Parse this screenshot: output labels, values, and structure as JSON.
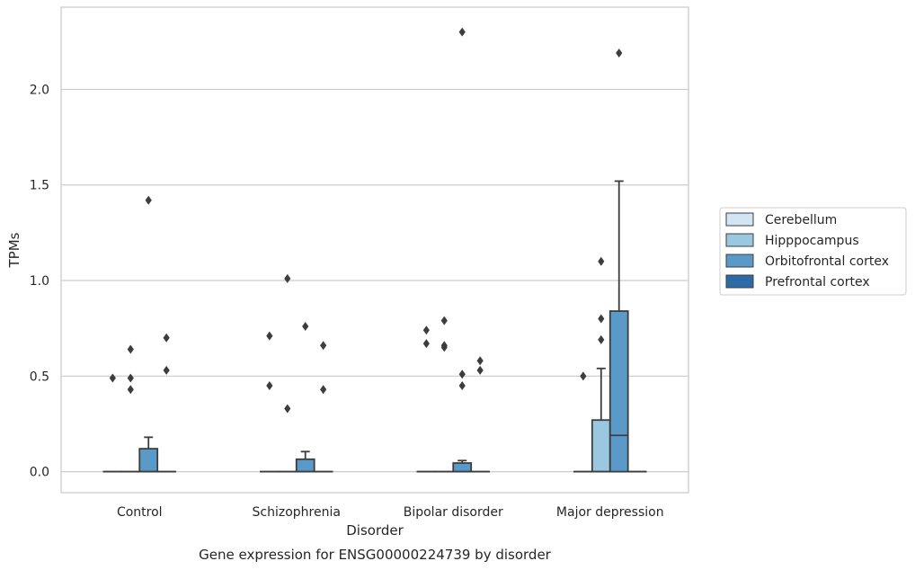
{
  "caption": "Gene expression for ENSG00000224739 by disorder",
  "chart_data": {
    "type": "box",
    "title": "",
    "xlabel": "Disorder",
    "ylabel": "TPMs",
    "ylim": [
      -0.11,
      2.43
    ],
    "yticks": [
      0.0,
      0.5,
      1.0,
      1.5,
      2.0
    ],
    "ytick_labels": [
      "0.0",
      "0.5",
      "1.0",
      "1.5",
      "2.0"
    ],
    "grid": "horizontal",
    "legend_position": "right",
    "categories": [
      "Control",
      "Schizophrenia",
      "Bipolar disorder",
      "Major depression"
    ],
    "series": [
      {
        "name": "Cerebellum",
        "color": "#d3e4f3",
        "boxes": [
          {
            "q1": 0,
            "median": 0,
            "q3": 0,
            "whisker_low": 0,
            "whisker_high": 0,
            "outliers": [
              0.49
            ]
          },
          {
            "q1": 0,
            "median": 0,
            "q3": 0,
            "whisker_low": 0,
            "whisker_high": 0,
            "outliers": [
              0.71,
              0.45
            ]
          },
          {
            "q1": 0,
            "median": 0,
            "q3": 0,
            "whisker_low": 0,
            "whisker_high": 0,
            "outliers": [
              0.74,
              0.67
            ]
          },
          {
            "q1": 0,
            "median": 0,
            "q3": 0,
            "whisker_low": 0,
            "whisker_high": 0,
            "outliers": [
              0.5
            ]
          }
        ]
      },
      {
        "name": "Hipppocampus",
        "color": "#9ac8e0",
        "boxes": [
          {
            "q1": 0,
            "median": 0,
            "q3": 0,
            "whisker_low": 0,
            "whisker_high": 0,
            "outliers": [
              0.64,
              0.49,
              0.43
            ]
          },
          {
            "q1": 0,
            "median": 0,
            "q3": 0,
            "whisker_low": 0,
            "whisker_high": 0,
            "outliers": [
              1.01,
              0.33
            ]
          },
          {
            "q1": 0,
            "median": 0,
            "q3": 0,
            "whisker_low": 0,
            "whisker_high": 0,
            "outliers": [
              0.79,
              0.66,
              0.65
            ]
          },
          {
            "q1": 0,
            "median": 0,
            "q3": 0.27,
            "whisker_low": 0,
            "whisker_high": 0.54,
            "outliers": [
              1.1,
              0.8,
              0.69
            ]
          }
        ]
      },
      {
        "name": "Orbitofrontal cortex",
        "color": "#5a9ac8",
        "boxes": [
          {
            "q1": 0,
            "median": 0,
            "q3": 0.12,
            "whisker_low": 0,
            "whisker_high": 0.18,
            "outliers": [
              1.42
            ]
          },
          {
            "q1": 0,
            "median": 0,
            "q3": 0.065,
            "whisker_low": 0,
            "whisker_high": 0.105,
            "outliers": [
              0.76
            ]
          },
          {
            "q1": 0,
            "median": 0,
            "q3": 0.045,
            "whisker_low": 0,
            "whisker_high": 0.058,
            "outliers": [
              2.3,
              0.51,
              0.45
            ]
          },
          {
            "q1": 0,
            "median": 0.19,
            "q3": 0.84,
            "whisker_low": 0,
            "whisker_high": 1.52,
            "outliers": [
              2.19
            ]
          }
        ]
      },
      {
        "name": "Prefrontal cortex",
        "color": "#2d6ba8",
        "boxes": [
          {
            "q1": 0,
            "median": 0,
            "q3": 0,
            "whisker_low": 0,
            "whisker_high": 0,
            "outliers": [
              0.7,
              0.53
            ]
          },
          {
            "q1": 0,
            "median": 0,
            "q3": 0,
            "whisker_low": 0,
            "whisker_high": 0,
            "outliers": [
              0.66,
              0.43
            ]
          },
          {
            "q1": 0,
            "median": 0,
            "q3": 0,
            "whisker_low": 0,
            "whisker_high": 0,
            "outliers": [
              0.58,
              0.53
            ]
          },
          {
            "q1": 0,
            "median": 0,
            "q3": 0,
            "whisker_low": 0,
            "whisker_high": 0,
            "outliers": []
          }
        ]
      }
    ]
  }
}
